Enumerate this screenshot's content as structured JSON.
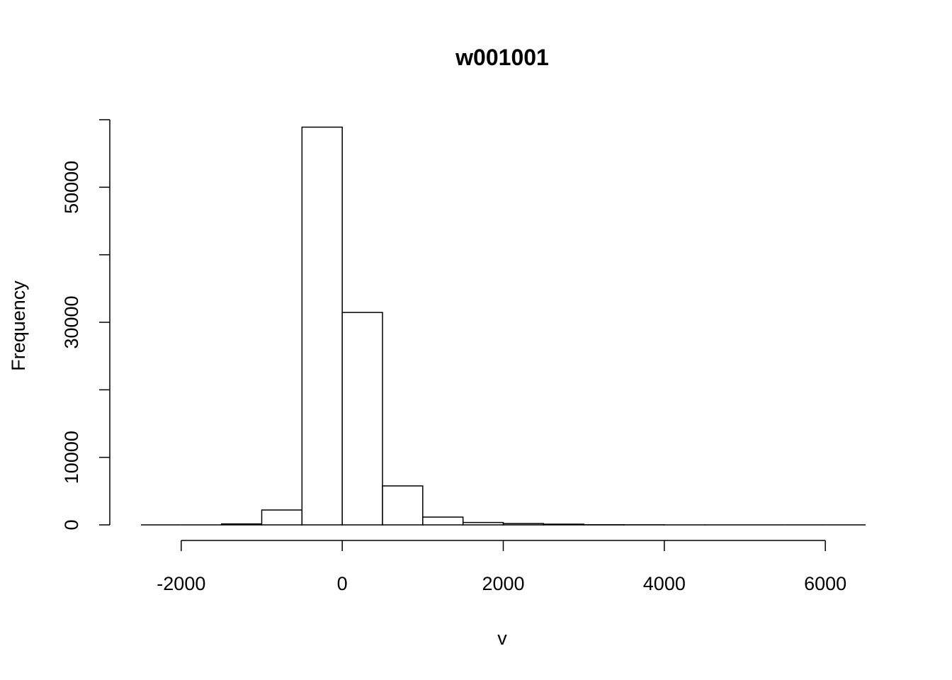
{
  "chart_data": {
    "type": "histogram",
    "title": "w001001",
    "x_label": "v",
    "y_label": "Frequency",
    "bins": [
      -2500,
      -2000,
      -1500,
      -1000,
      -500,
      0,
      500,
      1000,
      1500,
      2000,
      2500,
      3000,
      3500,
      4000,
      4500,
      5000,
      5500,
      6000,
      6500
    ],
    "values": [
      0,
      0,
      150,
      2200,
      58900,
      31450,
      5770,
      1150,
      350,
      200,
      100,
      30,
      10,
      5,
      0,
      0,
      0,
      0
    ],
    "color": "#ffffff",
    "xlim": [
      -2500,
      6500
    ],
    "xticks": [
      -2000,
      0,
      2000,
      4000,
      6000
    ],
    "ylim": [
      0,
      60000
    ],
    "yticks": [
      0,
      10000,
      {
        "value": 20000,
        "label": null
      },
      30000,
      {
        "value": 40000,
        "label": null
      },
      50000,
      {
        "value": 60000,
        "label": null
      }
    ],
    "grid": false
  }
}
